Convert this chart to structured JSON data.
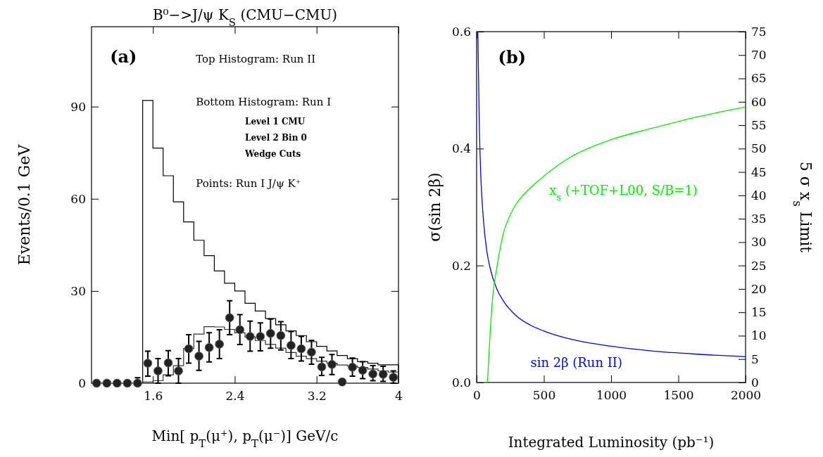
{
  "chart_data": [
    {
      "type": "histogram",
      "title": "B⁰−>J/ψ K$_{S}$ (CMU−CMU)",
      "xlabel": "Min[ p$_{T}$(μ⁺), p$_{T}$(μ⁻)] GeV/c",
      "ylabel": "Events/0.1 GeV",
      "annotations": [
        "(a)",
        "Top Histogram: Run II",
        "Bottom Histogram: Run I",
        "Level 1 CMU",
        "Level 2 Bin 0",
        "Wedge Cuts",
        "Points: Run I J/ψ K⁺"
      ],
      "xlim": [
        1,
        4
      ],
      "xticks": [
        1.6,
        2.4,
        3.2,
        4
      ],
      "ylim": [
        0,
        116
      ],
      "yticks": [
        0,
        30,
        60,
        90
      ],
      "marker": "circle",
      "bins": [
        1.5,
        1.6,
        1.7,
        1.8,
        1.9,
        2.0,
        2.1,
        2.2,
        2.3,
        2.4,
        2.5,
        2.6,
        2.7,
        2.8,
        2.9,
        3.0,
        3.1,
        3.2,
        3.3,
        3.4,
        3.5,
        3.6,
        3.7,
        3.8,
        3.9,
        4.0
      ],
      "series": [
        {
          "color": "#000000",
          "values": [
            92,
            76.5,
            67.5,
            59,
            52.5,
            46.5,
            41.5,
            36.5,
            32.5,
            30,
            26,
            23.5,
            21,
            19,
            17,
            15.5,
            13.5,
            12,
            10.5,
            9,
            8,
            7,
            6.5,
            6,
            6
          ]
        },
        {
          "color": "#333333",
          "values": [
            0.4,
            0.8,
            2.7,
            5.7,
            11.3,
            16,
            18.4,
            18.3,
            17.5,
            16.4,
            15,
            13.9,
            12.6,
            11.4,
            10,
            8.8,
            8,
            7.2,
            6.5,
            5.9,
            5.6,
            5.1,
            4.6,
            4,
            3.6
          ]
        },
        {
          "type": "scatter",
          "color": "#222222",
          "x": [
            1.05,
            1.15,
            1.25,
            1.35,
            1.45,
            1.55,
            1.65,
            1.75,
            1.85,
            1.95,
            2.05,
            2.15,
            2.25,
            2.35,
            2.45,
            2.55,
            2.65,
            2.75,
            2.85,
            2.95,
            3.05,
            3.15,
            3.25,
            3.35,
            3.45,
            3.55,
            3.65,
            3.75,
            3.85,
            3.95
          ],
          "values": [
            0,
            0,
            0,
            0,
            0,
            6.5,
            4,
            6.6,
            4,
            11.2,
            8.8,
            11.6,
            12.7,
            21.3,
            17.4,
            15.2,
            15.2,
            16.2,
            15.5,
            12.3,
            11.2,
            10.1,
            5.3,
            6.1,
            0.4,
            5.2,
            4.2,
            3,
            2.9,
            1.9
          ],
          "errors": [
            null,
            null,
            null,
            null,
            [
              0,
              1.8
            ],
            [
              2.3,
              10.4
            ],
            [
              0,
              8
            ],
            [
              2.4,
              10.6
            ],
            [
              0,
              8
            ],
            [
              6.5,
              15.8
            ],
            [
              4.2,
              13.6
            ],
            [
              6.9,
              16.4
            ],
            [
              8,
              17.4
            ],
            [
              15.8,
              26.8
            ],
            [
              12.6,
              22.3
            ],
            [
              10.4,
              20.2
            ],
            [
              10.5,
              19.6
            ],
            [
              11.4,
              20.9
            ],
            [
              10.8,
              20
            ],
            [
              8,
              16.8
            ],
            [
              7.2,
              15.2
            ],
            [
              6.2,
              13.9
            ],
            [
              2.5,
              8.4
            ],
            [
              2.8,
              9.3
            ],
            [
              0,
              1.3
            ],
            [
              2.3,
              8.2
            ],
            [
              1.5,
              7
            ],
            [
              0.8,
              5.7
            ],
            [
              0.6,
              5.5
            ],
            [
              0,
              4
            ]
          ]
        }
      ]
    },
    {
      "type": "line",
      "xlabel": "Integrated Luminosity (pb⁻¹)",
      "ylabel": "σ(sin 2β)",
      "y2label": "5 σ x$_{s}$ Limit",
      "annotations": [
        "(b)"
      ],
      "xlim": [
        0,
        2000
      ],
      "xticks": [
        0,
        500,
        1000,
        1500,
        2000
      ],
      "ylim": [
        0,
        0.6
      ],
      "yticks": [
        {
          "value": 0,
          "label": "0.0"
        },
        {
          "value": 0.2,
          "label": "0.2"
        },
        {
          "value": 0.4,
          "label": "0.4"
        },
        {
          "value": 0.6,
          "label": "0.6"
        }
      ],
      "y2lim": [
        0,
        75
      ],
      "y2ticks": [
        0,
        5,
        10,
        15,
        20,
        25,
        30,
        35,
        40,
        45,
        50,
        55,
        60,
        65,
        70,
        75
      ],
      "series": [
        {
          "name": "sin 2β (Run II)",
          "color": "#0000ff",
          "x": [
            9,
            20,
            30,
            50,
            75,
            100,
            150,
            200,
            300,
            400,
            500,
            700,
            1000,
            1300,
            1600,
            2000
          ],
          "values": [
            0.6,
            0.44,
            0.36,
            0.28,
            0.226,
            0.196,
            0.16,
            0.139,
            0.113,
            0.098,
            0.088,
            0.074,
            0.062,
            0.054,
            0.049,
            0.044
          ]
        },
        {
          "name": "x$_{s}$ (+TOF+L00, S/B=1)",
          "color": "#00ee00",
          "axis": "y2",
          "x": [
            0,
            80,
            85,
            100,
            120,
            150,
            200,
            250,
            300,
            400,
            500,
            700,
            1000,
            1300,
            1600,
            2000
          ],
          "values": [
            0,
            0,
            2.3,
            10.3,
            18.4,
            24.5,
            32,
            35.8,
            38.4,
            41.6,
            44.1,
            48.2,
            51.9,
            54.3,
            56.5,
            58.9
          ]
        }
      ]
    }
  ]
}
